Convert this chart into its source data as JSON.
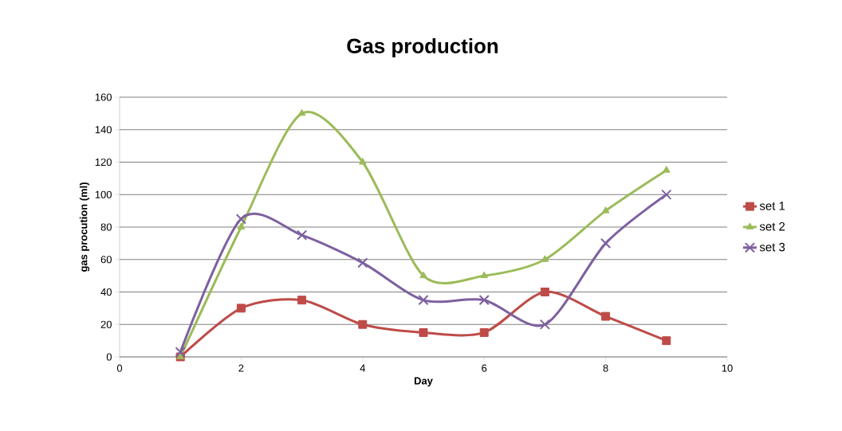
{
  "chart_data": {
    "type": "line",
    "title": "Gas production",
    "xlabel": "Day",
    "ylabel": "gas procution (ml)",
    "x": [
      1,
      2,
      3,
      4,
      5,
      6,
      7,
      8,
      9
    ],
    "series": [
      {
        "name": "set 1",
        "color": "#be4b48",
        "marker": "square",
        "values": [
          0,
          30,
          35,
          20,
          15,
          15,
          40,
          25,
          10
        ]
      },
      {
        "name": "set 2",
        "color": "#9bbb59",
        "marker": "triangle",
        "values": [
          0,
          80,
          150,
          120,
          50,
          50,
          60,
          90,
          115
        ]
      },
      {
        "name": "set 3",
        "color": "#7d60a0",
        "marker": "cross",
        "values": [
          3,
          85,
          75,
          58,
          35,
          35,
          20,
          70,
          100
        ]
      }
    ],
    "xlim": [
      0,
      10
    ],
    "xticks": [
      0,
      2,
      4,
      6,
      8,
      10
    ],
    "ylim": [
      0,
      160
    ],
    "yticks": [
      0,
      20,
      40,
      60,
      80,
      100,
      120,
      140,
      160
    ],
    "grid": "y",
    "legend": "right"
  }
}
